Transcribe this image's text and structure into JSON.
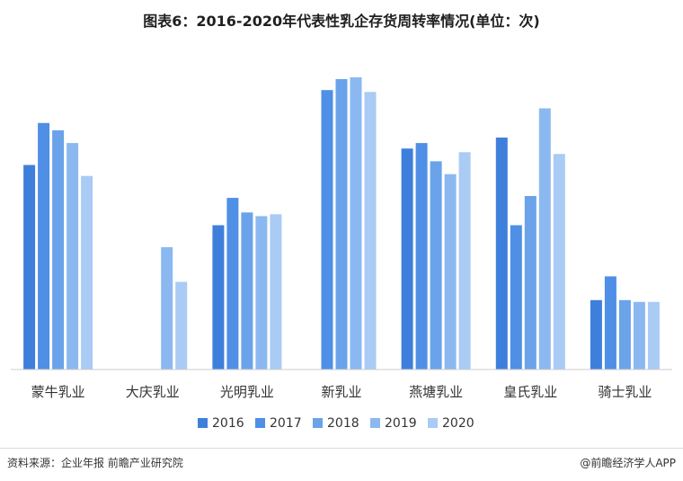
{
  "title": "图表6：2016-2020年代表性乳企存货周转率情况(单位：次)",
  "footer": {
    "source": "资料来源：企业年报 前瞻产业研究院",
    "brand": "@前瞻经济学人APP"
  },
  "colors": {
    "2016": "#3f7fdc",
    "2017": "#4f8fe6",
    "2018": "#6aa3ea",
    "2019": "#8bb8f0",
    "2020": "#a9cbf4",
    "axis": "#cccccc"
  },
  "chart_data": {
    "type": "bar",
    "title": "图表6：2016-2020年代表性乳企存货周转率情况(单位：次)",
    "categories": [
      "蒙牛乳业",
      "大庆乳业",
      "光明乳业",
      "新乳业",
      "燕塘乳业",
      "皇氏乳业",
      "骑士乳业"
    ],
    "series": [
      {
        "name": "2016",
        "values": [
          11.2,
          null,
          7.9,
          null,
          12.1,
          12.7,
          3.8
        ]
      },
      {
        "name": "2017",
        "values": [
          13.5,
          null,
          9.4,
          15.3,
          12.4,
          7.9,
          5.1
        ]
      },
      {
        "name": "2018",
        "values": [
          13.1,
          null,
          8.6,
          15.9,
          11.4,
          9.5,
          3.8
        ]
      },
      {
        "name": "2019",
        "values": [
          12.4,
          6.7,
          8.4,
          16.0,
          10.7,
          14.3,
          3.7
        ]
      },
      {
        "name": "2020",
        "values": [
          10.6,
          4.8,
          8.5,
          15.2,
          11.9,
          11.8,
          3.7
        ]
      }
    ],
    "ylim": [
      0,
      16
    ],
    "grid": false,
    "y_axis_visible": false,
    "legend_position": "bottom"
  }
}
